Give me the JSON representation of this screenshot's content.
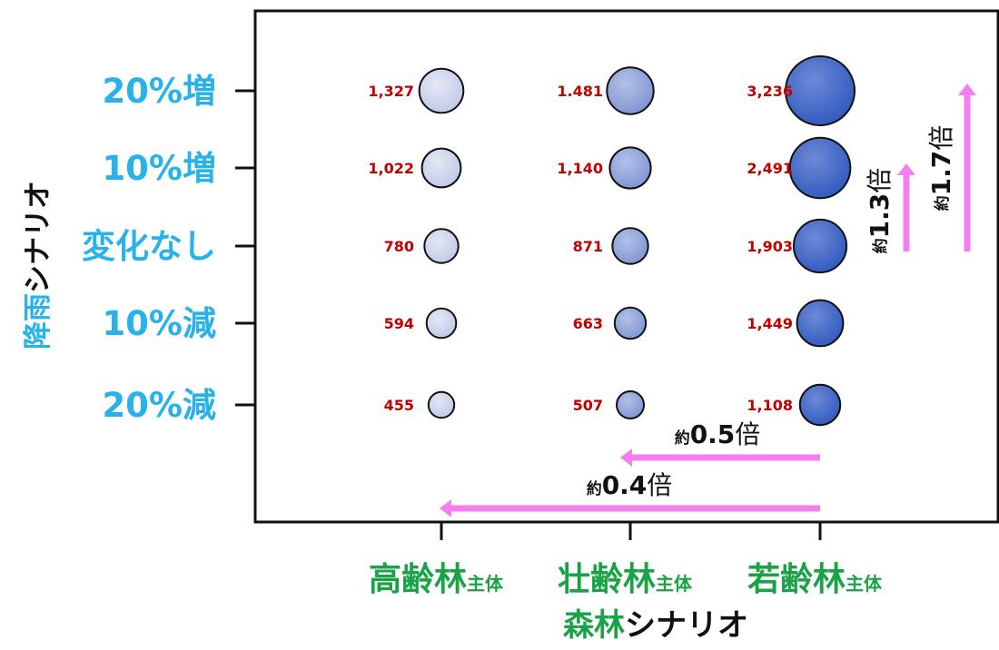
{
  "chart_data": {
    "type": "scatter",
    "x_categories": [
      "高齢林",
      "壮齢林",
      "若齢林"
    ],
    "x_category_suffix": "主体",
    "y_categories": [
      "20%増",
      "10%増",
      "変化なし",
      "10%減",
      "20%減"
    ],
    "xlabel": {
      "accent": "森林",
      "rest": "シナリオ"
    },
    "ylabel": {
      "accent": "降雨",
      "rest": "シナリオ"
    },
    "points": [
      {
        "x": "高齢林",
        "y": "20%増",
        "value": 1327,
        "label": "1,327"
      },
      {
        "x": "高齢林",
        "y": "10%増",
        "value": 1022,
        "label": "1,022"
      },
      {
        "x": "高齢林",
        "y": "変化なし",
        "value": 780,
        "label": "780"
      },
      {
        "x": "高齢林",
        "y": "10%減",
        "value": 594,
        "label": "594"
      },
      {
        "x": "高齢林",
        "y": "20%減",
        "value": 455,
        "label": "455"
      },
      {
        "x": "壮齢林",
        "y": "20%増",
        "value": 1481,
        "label": "1.481"
      },
      {
        "x": "壮齢林",
        "y": "10%増",
        "value": 1140,
        "label": "1,140"
      },
      {
        "x": "壮齢林",
        "y": "変化なし",
        "value": 871,
        "label": "871"
      },
      {
        "x": "壮齢林",
        "y": "10%減",
        "value": 663,
        "label": "663"
      },
      {
        "x": "壮齢林",
        "y": "20%減",
        "value": 507,
        "label": "507"
      },
      {
        "x": "若齢林",
        "y": "20%増",
        "value": 3236,
        "label": "3,236"
      },
      {
        "x": "若齢林",
        "y": "10%増",
        "value": 2491,
        "label": "2,491"
      },
      {
        "x": "若齢林",
        "y": "変化なし",
        "value": 1903,
        "label": "1,903"
      },
      {
        "x": "若齢林",
        "y": "10%減",
        "value": 1449,
        "label": "1,449"
      },
      {
        "x": "若齢林",
        "y": "20%減",
        "value": 1108,
        "label": "1,108"
      }
    ],
    "annotations": [
      {
        "name": "ratio-1-3",
        "prefix": "約",
        "value": "1.3",
        "suffix": "倍",
        "from": {
          "x": "若齢林",
          "y": "変化なし"
        },
        "to": {
          "x": "若齢林",
          "y": "10%増"
        }
      },
      {
        "name": "ratio-1-7",
        "prefix": "約",
        "value": "1.7",
        "suffix": "倍",
        "from": {
          "x": "若齢林",
          "y": "変化なし"
        },
        "to": {
          "x": "若齢林",
          "y": "20%増"
        }
      },
      {
        "name": "ratio-0-5",
        "prefix": "約",
        "value": "0.5",
        "suffix": "倍",
        "from": {
          "x": "若齢林"
        },
        "to": {
          "x": "壮齢林"
        }
      },
      {
        "name": "ratio-0-4",
        "prefix": "約",
        "value": "0.4",
        "suffix": "倍",
        "from": {
          "x": "若齢林"
        },
        "to": {
          "x": "高齢林"
        }
      }
    ],
    "colors": {
      "ytick": "#29b2ea",
      "xtick": "#1aa346",
      "axis_label_accent_x": "#1aa346",
      "axis_label_accent_y": "#29b2ea",
      "axis_label_rest": "#111111",
      "data_label": "#c00000",
      "arrow": "#f67ef0",
      "bubble_light": "#ccd3ea",
      "bubble_mid": "#8fa3da",
      "bubble_dark": "#3f67c6",
      "annotation_text": "#111111"
    },
    "grid": false,
    "legend": "none"
  }
}
